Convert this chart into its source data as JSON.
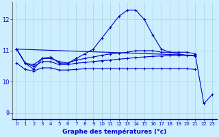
{
  "title": "Graphe des températures (°c)",
  "bg_color": "#cceeff",
  "grid_color": "#aadddd",
  "line_color": "#0000cc",
  "axis_label_color": "#0000cc",
  "tick_label_color": "#0000cc",
  "xlim": [
    -0.5,
    23.5
  ],
  "ylim": [
    8.8,
    12.55
  ],
  "yticks": [
    9,
    10,
    11,
    12
  ],
  "xticks": [
    0,
    1,
    2,
    3,
    4,
    5,
    6,
    7,
    8,
    9,
    10,
    11,
    12,
    13,
    14,
    15,
    16,
    17,
    18,
    19,
    20,
    21,
    22,
    23
  ],
  "series": [
    {
      "x": [
        0,
        1,
        2,
        3,
        4,
        5,
        6,
        7,
        8,
        9,
        10,
        11,
        12,
        13,
        14,
        15,
        16,
        17,
        18,
        19,
        20,
        21
      ],
      "y": [
        11.05,
        10.6,
        10.4,
        10.75,
        10.8,
        10.6,
        10.6,
        10.75,
        10.9,
        11.05,
        11.4,
        11.75,
        12.1,
        12.3,
        12.3,
        12.0,
        11.5,
        11.05,
        10.95,
        10.9,
        10.85,
        10.85
      ]
    },
    {
      "x": [
        0,
        1,
        2,
        3,
        4,
        5,
        6,
        7,
        8,
        9,
        10,
        11,
        12,
        13,
        14,
        15,
        16,
        17,
        18,
        19,
        20,
        21
      ],
      "y": [
        11.05,
        10.6,
        10.55,
        10.75,
        10.75,
        10.65,
        10.6,
        10.7,
        10.75,
        10.8,
        10.85,
        10.9,
        10.92,
        10.95,
        11.0,
        11.0,
        11.0,
        10.95,
        10.95,
        10.95,
        10.95,
        10.9
      ]
    },
    {
      "x": [
        0,
        1,
        2,
        3,
        4,
        5,
        6,
        7,
        8,
        9,
        10,
        11,
        12,
        13,
        14,
        15,
        16,
        17,
        18,
        19,
        20,
        21
      ],
      "y": [
        11.05,
        10.6,
        10.5,
        10.65,
        10.65,
        10.55,
        10.55,
        10.6,
        10.62,
        10.65,
        10.68,
        10.7,
        10.73,
        10.75,
        10.78,
        10.8,
        10.82,
        10.83,
        10.84,
        10.85,
        10.85,
        10.83
      ]
    },
    {
      "x": [
        0,
        1,
        2,
        3,
        4,
        5,
        6,
        7,
        8,
        9,
        10,
        11,
        12,
        13,
        14,
        15,
        16,
        17,
        18,
        19,
        20,
        21
      ],
      "y": [
        10.6,
        10.4,
        10.35,
        10.45,
        10.45,
        10.38,
        10.38,
        10.4,
        10.42,
        10.42,
        10.42,
        10.42,
        10.42,
        10.42,
        10.42,
        10.42,
        10.42,
        10.42,
        10.42,
        10.42,
        10.42,
        10.4
      ]
    },
    {
      "x": [
        0,
        21,
        22,
        23
      ],
      "y": [
        11.05,
        10.85,
        9.3,
        9.6
      ]
    }
  ]
}
